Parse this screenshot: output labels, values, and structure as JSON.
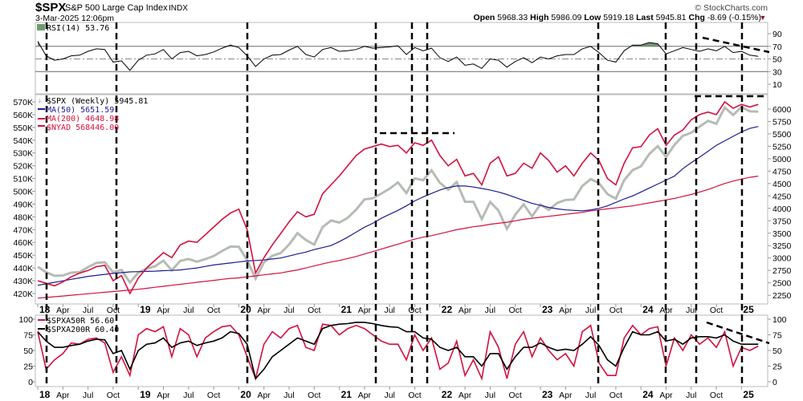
{
  "header": {
    "symbol": "$SPX",
    "name": "S&P 500 Large Cap Index",
    "exchange": "INDX",
    "datetime": "3-Mar-2025 12:06pm",
    "copyright": "© StockCharts.com",
    "open_label": "Open",
    "open": "5968.33",
    "high_label": "High",
    "high": "5986.09",
    "low_label": "Low",
    "low": "5919.18",
    "last_label": "Last",
    "last": "5945.81",
    "chg_label": "Chg",
    "chg": "-8.69 (-0.15%)",
    "chg_arrow": "▼"
  },
  "colors": {
    "red": "#d4103c",
    "blue": "#1c1c96",
    "price_bars": "#b4bcb4",
    "rsi_fill": "#6f9a6f",
    "black": "#000000"
  },
  "chart_data": {
    "type": "line",
    "period": "Weekly",
    "start_month": "2018-01",
    "x_axis": {
      "labels": [
        "18",
        "Apr",
        "Jul",
        "Oct",
        "19",
        "Apr",
        "Jul",
        "Oct",
        "20",
        "Apr",
        "Jul",
        "Oct",
        "21",
        "Apr",
        "Jul",
        "Oct",
        "22",
        "Apr",
        "Jul",
        "Oct",
        "23",
        "Apr",
        "Jul",
        "Oct",
        "24",
        "Apr",
        "Jul",
        "Oct",
        "25"
      ]
    },
    "panels": {
      "rsi": {
        "legend": "RSI(14) 53.76",
        "ylim": [
          0,
          100
        ],
        "ticks": [
          "90",
          "70",
          "50",
          "30",
          "10"
        ],
        "overbought": 70,
        "oversold": 30,
        "mid": 50,
        "values": [
          78,
          55,
          48,
          50,
          55,
          56,
          62,
          66,
          65,
          45,
          47,
          32,
          48,
          56,
          58,
          65,
          50,
          60,
          62,
          55,
          57,
          61,
          67,
          72,
          68,
          55,
          38,
          50,
          56,
          57,
          64,
          70,
          57,
          53,
          65,
          68,
          62,
          63,
          65,
          70,
          67,
          68,
          69,
          71,
          57,
          68,
          63,
          67,
          52,
          46,
          53,
          40,
          42,
          35,
          50,
          48,
          37,
          46,
          52,
          44,
          53,
          50,
          55,
          57,
          57,
          66,
          70,
          60,
          48,
          45,
          63,
          72,
          72,
          76,
          74,
          58,
          63,
          68,
          65,
          62,
          66,
          63,
          70,
          60,
          62,
          56,
          54
        ]
      },
      "price": {
        "legend_spx": "$SPX (Weekly)",
        "legend_spx_value": "5945.81",
        "legend_ma50": "MA(50) 5651.59",
        "legend_ma200": "MA(200) 4648.98",
        "legend_nyad": "$NYAD 568446.00",
        "right_ticks": [
          "6000",
          "5750",
          "5500",
          "5250",
          "5000",
          "4750",
          "4500",
          "4250",
          "4000",
          "3750",
          "3500",
          "3250",
          "3000",
          "2750",
          "2500",
          "2250"
        ],
        "left_ticks": [
          "570K",
          "560K",
          "550K",
          "540K",
          "530K",
          "520K",
          "510K",
          "500K",
          "490K",
          "480K",
          "470K",
          "460K",
          "450K",
          "440K",
          "430K",
          "420K"
        ],
        "spx": [
          2824,
          2714,
          2641,
          2648,
          2705,
          2718,
          2816,
          2902,
          2914,
          2712,
          2760,
          2507,
          2704,
          2784,
          2834,
          2946,
          2752,
          2942,
          2980,
          2926,
          2977,
          3038,
          3141,
          3231,
          3226,
          2954,
          2585,
          2912,
          3044,
          3100,
          3271,
          3500,
          3363,
          3270,
          3622,
          3756,
          3714,
          3811,
          3973,
          4181,
          4204,
          4298,
          4395,
          4523,
          4308,
          4605,
          4567,
          4766,
          4516,
          4374,
          4530,
          4132,
          4132,
          3785,
          4130,
          3955,
          3586,
          3872,
          4080,
          3840,
          4077,
          3970,
          4109,
          4169,
          4180,
          4450,
          4589,
          4508,
          4288,
          4194,
          4568,
          4770,
          4846,
          5096,
          5254,
          5036,
          5278,
          5460,
          5522,
          5648,
          5762,
          5705,
          6032,
          5882,
          6041,
          5955,
          5946
        ],
        "ma50": [
          2450,
          2480,
          2510,
          2540,
          2570,
          2600,
          2630,
          2650,
          2670,
          2690,
          2705,
          2720,
          2725,
          2730,
          2735,
          2745,
          2750,
          2760,
          2780,
          2800,
          2830,
          2860,
          2880,
          2900,
          2920,
          2940,
          2950,
          2960,
          2980,
          3000,
          3040,
          3080,
          3120,
          3170,
          3210,
          3250,
          3330,
          3420,
          3520,
          3620,
          3700,
          3800,
          3880,
          3960,
          4050,
          4150,
          4230,
          4300,
          4370,
          4420,
          4450,
          4450,
          4430,
          4400,
          4370,
          4330,
          4280,
          4220,
          4160,
          4100,
          4060,
          4020,
          3990,
          3970,
          3960,
          3950,
          3970,
          4000,
          4050,
          4120,
          4190,
          4250,
          4330,
          4410,
          4490,
          4570,
          4650,
          4800,
          4920,
          5030,
          5150,
          5270,
          5360,
          5450,
          5540,
          5610,
          5650
        ],
        "ma200": [
          2190,
          2205,
          2220,
          2235,
          2250,
          2265,
          2280,
          2295,
          2310,
          2325,
          2340,
          2355,
          2370,
          2390,
          2410,
          2430,
          2450,
          2470,
          2490,
          2510,
          2530,
          2550,
          2570,
          2590,
          2600,
          2620,
          2640,
          2660,
          2680,
          2700,
          2730,
          2760,
          2800,
          2840,
          2880,
          2920,
          2950,
          2990,
          3030,
          3080,
          3130,
          3180,
          3230,
          3280,
          3330,
          3380,
          3420,
          3450,
          3490,
          3530,
          3570,
          3600,
          3630,
          3650,
          3680,
          3700,
          3720,
          3750,
          3780,
          3800,
          3820,
          3840,
          3860,
          3880,
          3900,
          3920,
          3950,
          3970,
          3990,
          4010,
          4030,
          4050,
          4080,
          4110,
          4140,
          4170,
          4200,
          4240,
          4280,
          4330,
          4380,
          4440,
          4500,
          4550,
          4590,
          4625,
          4649
        ],
        "nyad_k": [
          430,
          428,
          426,
          429,
          433,
          436,
          438,
          441,
          442,
          430,
          434,
          420,
          432,
          440,
          446,
          452,
          448,
          458,
          461,
          460,
          466,
          472,
          478,
          483,
          486,
          470,
          436,
          448,
          458,
          467,
          476,
          484,
          480,
          482,
          498,
          505,
          512,
          520,
          528,
          533,
          535,
          537,
          535,
          536,
          530,
          538,
          536,
          540,
          528,
          520,
          525,
          512,
          514,
          505,
          522,
          527,
          512,
          514,
          522,
          518,
          530,
          524,
          515,
          520,
          512,
          522,
          530,
          524,
          510,
          505,
          522,
          534,
          535,
          544,
          549,
          536,
          544,
          548,
          556,
          560,
          562,
          560,
          570,
          565,
          568,
          566,
          568
        ]
      },
      "breadth": {
        "legend_a50r": "$SPXA50R 56.60",
        "legend_a200r": "$SPXA200R 60.40",
        "ylim": [
          0,
          100
        ],
        "ticks": [
          "100",
          "75",
          "50",
          "25",
          "0"
        ],
        "spxa50r": [
          80,
          20,
          35,
          45,
          62,
          60,
          68,
          70,
          62,
          15,
          40,
          10,
          75,
          85,
          80,
          88,
          40,
          85,
          75,
          40,
          70,
          80,
          88,
          90,
          75,
          40,
          5,
          60,
          80,
          70,
          85,
          90,
          55,
          50,
          92,
          90,
          75,
          85,
          90,
          85,
          75,
          65,
          60,
          60,
          35,
          75,
          50,
          70,
          20,
          30,
          65,
          10,
          35,
          5,
          80,
          55,
          5,
          60,
          80,
          40,
          70,
          50,
          35,
          45,
          25,
          80,
          90,
          30,
          10,
          10,
          70,
          90,
          75,
          85,
          88,
          25,
          70,
          50,
          75,
          60,
          70,
          55,
          80,
          25,
          55,
          50,
          57
        ],
        "spxa200r": [
          80,
          65,
          55,
          55,
          58,
          60,
          65,
          68,
          67,
          45,
          50,
          20,
          50,
          60,
          62,
          70,
          55,
          62,
          65,
          58,
          62,
          65,
          70,
          80,
          77,
          60,
          5,
          20,
          40,
          50,
          60,
          70,
          65,
          60,
          85,
          90,
          92,
          93,
          95,
          95,
          93,
          90,
          88,
          87,
          80,
          80,
          70,
          68,
          55,
          50,
          55,
          40,
          40,
          25,
          45,
          45,
          20,
          40,
          55,
          55,
          62,
          55,
          50,
          52,
          50,
          60,
          72,
          58,
          35,
          25,
          55,
          80,
          75,
          75,
          80,
          65,
          68,
          60,
          70,
          72,
          72,
          70,
          75,
          65,
          60,
          60,
          60
        ]
      }
    }
  }
}
